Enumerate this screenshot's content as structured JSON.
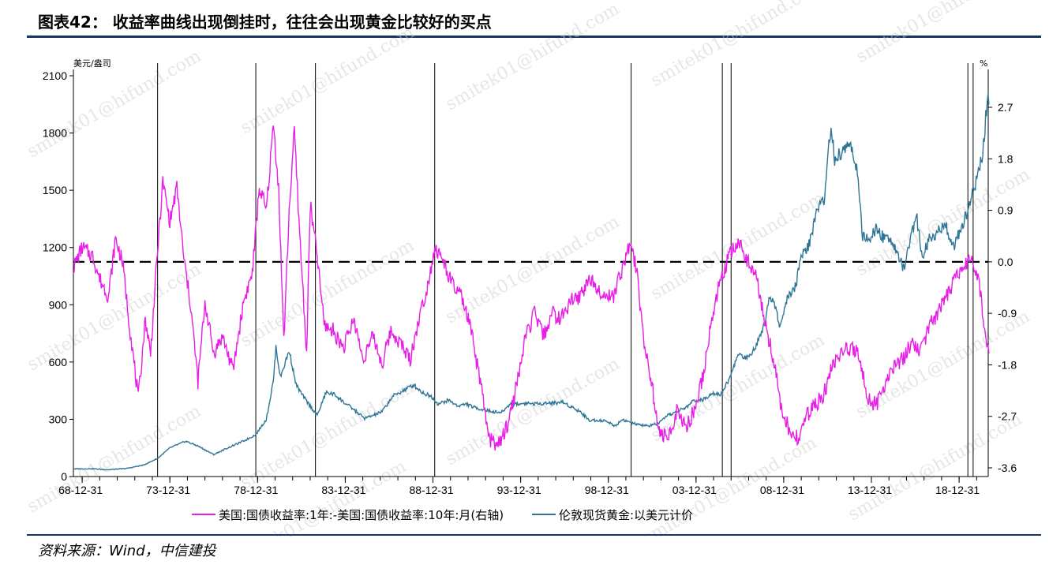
{
  "title": "图表42：   收益率曲线出现倒挂时，往往会出现黄金比较好的买点",
  "source": "资料来源：Wind，中信建投",
  "watermark": "smitek01@hifund.com",
  "colors": {
    "spread": "#e81ee8",
    "gold": "#2e7596",
    "rule": "#17375e",
    "zero_line": "#000000"
  },
  "chart_data": {
    "type": "line",
    "x": {
      "tick_labels": [
        "68-12-31",
        "73-12-31",
        "78-12-31",
        "83-12-31",
        "88-12-31",
        "93-12-31",
        "98-12-31",
        "03-12-31",
        "08-12-31",
        "13-12-31",
        "18-12-31"
      ],
      "range": [
        "1968-06",
        "2020-08"
      ]
    },
    "y_left": {
      "unit": "美元/盎司",
      "ticks": [
        0,
        300,
        600,
        900,
        1200,
        1500,
        1800,
        2100
      ],
      "range": [
        0,
        2100
      ]
    },
    "y_right": {
      "unit": "%",
      "ticks": [
        -3.6,
        -2.7,
        -1.8,
        -0.9,
        0.0,
        0.9,
        1.8,
        2.7
      ],
      "range": [
        -3.6,
        2.7
      ]
    },
    "zero_line_right": 0.0,
    "inversion_markers": [
      1973.3,
      1978.9,
      1982.3,
      1989.1,
      2000.3,
      2005.5,
      2006.0,
      2019.5,
      2019.8
    ],
    "series": [
      {
        "name": "美国:国债收益率:1年:-美国:国债收益率:10年:月(右轴)",
        "axis": "right",
        "points": [
          [
            1968.5,
            -0.1
          ],
          [
            1969.0,
            0.25
          ],
          [
            1969.6,
            0.1
          ],
          [
            1970.0,
            -0.3
          ],
          [
            1970.5,
            -0.6
          ],
          [
            1970.9,
            0.4
          ],
          [
            1971.3,
            0.0
          ],
          [
            1971.7,
            -1.1
          ],
          [
            1972.2,
            -2.4
          ],
          [
            1972.6,
            -1.0
          ],
          [
            1972.9,
            -1.6
          ],
          [
            1973.3,
            0.2
          ],
          [
            1973.6,
            1.4
          ],
          [
            1974.0,
            0.7
          ],
          [
            1974.4,
            1.3
          ],
          [
            1974.8,
            0.05
          ],
          [
            1975.2,
            -0.8
          ],
          [
            1975.6,
            -2.1
          ],
          [
            1976.0,
            -0.7
          ],
          [
            1976.5,
            -1.6
          ],
          [
            1977.0,
            -1.3
          ],
          [
            1977.6,
            -1.9
          ],
          [
            1978.2,
            -0.7
          ],
          [
            1978.7,
            -0.2
          ],
          [
            1979.1,
            1.3
          ],
          [
            1979.5,
            0.9
          ],
          [
            1979.9,
            2.4
          ],
          [
            1980.2,
            1.3
          ],
          [
            1980.5,
            -1.4
          ],
          [
            1980.8,
            0.9
          ],
          [
            1981.1,
            2.3
          ],
          [
            1981.4,
            0.5
          ],
          [
            1981.8,
            -1.6
          ],
          [
            1982.0,
            1.0
          ],
          [
            1982.4,
            0.1
          ],
          [
            1982.8,
            -1.1
          ],
          [
            1983.3,
            -1.2
          ],
          [
            1983.9,
            -1.5
          ],
          [
            1984.5,
            -1.0
          ],
          [
            1985.0,
            -1.7
          ],
          [
            1985.6,
            -1.3
          ],
          [
            1986.1,
            -1.8
          ],
          [
            1986.6,
            -1.2
          ],
          [
            1987.1,
            -1.4
          ],
          [
            1987.7,
            -1.7
          ],
          [
            1988.2,
            -1.0
          ],
          [
            1988.7,
            -0.4
          ],
          [
            1989.1,
            0.25
          ],
          [
            1989.6,
            0.0
          ],
          [
            1990.1,
            -0.4
          ],
          [
            1990.6,
            -0.6
          ],
          [
            1991.1,
            -1.1
          ],
          [
            1991.7,
            -2.1
          ],
          [
            1992.2,
            -3.1
          ],
          [
            1992.8,
            -3.2
          ],
          [
            1993.3,
            -2.8
          ],
          [
            1993.8,
            -2.1
          ],
          [
            1994.3,
            -1.3
          ],
          [
            1994.8,
            -0.9
          ],
          [
            1995.3,
            -1.3
          ],
          [
            1995.8,
            -0.9
          ],
          [
            1996.3,
            -1.0
          ],
          [
            1996.8,
            -0.7
          ],
          [
            1997.4,
            -0.6
          ],
          [
            1997.9,
            -0.3
          ],
          [
            1998.3,
            -0.4
          ],
          [
            1998.8,
            -0.6
          ],
          [
            1999.3,
            -0.6
          ],
          [
            1999.8,
            -0.1
          ],
          [
            2000.2,
            0.3
          ],
          [
            2000.6,
            -0.1
          ],
          [
            2001.0,
            -1.3
          ],
          [
            2001.5,
            -2.2
          ],
          [
            2001.9,
            -3.0
          ],
          [
            2002.4,
            -3.1
          ],
          [
            2002.9,
            -2.6
          ],
          [
            2003.4,
            -2.9
          ],
          [
            2003.9,
            -2.6
          ],
          [
            2004.4,
            -2.0
          ],
          [
            2004.9,
            -1.0
          ],
          [
            2005.4,
            -0.3
          ],
          [
            2005.9,
            0.1
          ],
          [
            2006.4,
            0.35
          ],
          [
            2006.9,
            0.05
          ],
          [
            2007.4,
            -0.2
          ],
          [
            2007.9,
            -1.0
          ],
          [
            2008.4,
            -1.7
          ],
          [
            2008.9,
            -2.6
          ],
          [
            2009.4,
            -3.0
          ],
          [
            2009.9,
            -3.1
          ],
          [
            2010.3,
            -2.7
          ],
          [
            2010.8,
            -2.5
          ],
          [
            2011.3,
            -2.3
          ],
          [
            2011.8,
            -1.8
          ],
          [
            2012.3,
            -1.6
          ],
          [
            2012.8,
            -1.5
          ],
          [
            2013.3,
            -1.6
          ],
          [
            2013.8,
            -2.4
          ],
          [
            2014.3,
            -2.5
          ],
          [
            2014.8,
            -2.1
          ],
          [
            2015.3,
            -1.8
          ],
          [
            2015.8,
            -1.7
          ],
          [
            2016.3,
            -1.4
          ],
          [
            2016.8,
            -1.6
          ],
          [
            2017.3,
            -1.1
          ],
          [
            2017.8,
            -0.9
          ],
          [
            2018.3,
            -0.6
          ],
          [
            2018.8,
            -0.3
          ],
          [
            2019.3,
            -0.1
          ],
          [
            2019.6,
            0.1
          ],
          [
            2019.9,
            -0.05
          ],
          [
            2020.2,
            -0.5
          ],
          [
            2020.5,
            -1.4
          ],
          [
            2020.7,
            -1.6
          ]
        ]
      },
      {
        "name": "伦敦现货黄金:以美元计价",
        "axis": "left",
        "points": [
          [
            1968.5,
            40
          ],
          [
            1969.5,
            41
          ],
          [
            1970.5,
            36
          ],
          [
            1971.5,
            42
          ],
          [
            1972.5,
            60
          ],
          [
            1973.3,
            95
          ],
          [
            1974.0,
            150
          ],
          [
            1974.9,
            185
          ],
          [
            1975.6,
            160
          ],
          [
            1976.5,
            115
          ],
          [
            1977.3,
            150
          ],
          [
            1978.3,
            190
          ],
          [
            1978.9,
            220
          ],
          [
            1979.5,
            300
          ],
          [
            1979.9,
            500
          ],
          [
            1980.05,
            680
          ],
          [
            1980.3,
            520
          ],
          [
            1980.8,
            660
          ],
          [
            1981.2,
            480
          ],
          [
            1981.6,
            420
          ],
          [
            1982.0,
            370
          ],
          [
            1982.4,
            320
          ],
          [
            1982.9,
            440
          ],
          [
            1983.4,
            430
          ],
          [
            1983.9,
            390
          ],
          [
            1984.5,
            350
          ],
          [
            1985.1,
            305
          ],
          [
            1985.6,
            320
          ],
          [
            1986.1,
            340
          ],
          [
            1986.7,
            420
          ],
          [
            1987.3,
            450
          ],
          [
            1987.9,
            480
          ],
          [
            1988.4,
            440
          ],
          [
            1988.9,
            420
          ],
          [
            1989.3,
            380
          ],
          [
            1989.9,
            400
          ],
          [
            1990.4,
            370
          ],
          [
            1990.9,
            380
          ],
          [
            1991.4,
            360
          ],
          [
            1991.9,
            350
          ],
          [
            1992.4,
            340
          ],
          [
            1992.9,
            335
          ],
          [
            1993.4,
            380
          ],
          [
            1993.9,
            380
          ],
          [
            1994.4,
            385
          ],
          [
            1994.9,
            380
          ],
          [
            1995.4,
            385
          ],
          [
            1995.9,
            385
          ],
          [
            1996.4,
            390
          ],
          [
            1996.9,
            365
          ],
          [
            1997.4,
            340
          ],
          [
            1997.9,
            295
          ],
          [
            1998.4,
            295
          ],
          [
            1998.9,
            290
          ],
          [
            1999.4,
            265
          ],
          [
            1999.8,
            300
          ],
          [
            2000.3,
            280
          ],
          [
            2000.8,
            270
          ],
          [
            2001.3,
            265
          ],
          [
            2001.9,
            280
          ],
          [
            2002.4,
            320
          ],
          [
            2002.9,
            340
          ],
          [
            2003.4,
            360
          ],
          [
            2003.9,
            400
          ],
          [
            2004.4,
            400
          ],
          [
            2004.9,
            440
          ],
          [
            2005.4,
            430
          ],
          [
            2005.9,
            510
          ],
          [
            2006.4,
            640
          ],
          [
            2006.9,
            620
          ],
          [
            2007.4,
            680
          ],
          [
            2007.9,
            800
          ],
          [
            2008.2,
            950
          ],
          [
            2008.5,
            900
          ],
          [
            2008.8,
            780
          ],
          [
            2009.2,
            930
          ],
          [
            2009.7,
            1000
          ],
          [
            2009.95,
            1150
          ],
          [
            2010.4,
            1200
          ],
          [
            2010.9,
            1400
          ],
          [
            2011.3,
            1450
          ],
          [
            2011.7,
            1850
          ],
          [
            2011.9,
            1650
          ],
          [
            2012.3,
            1700
          ],
          [
            2012.7,
            1750
          ],
          [
            2012.9,
            1700
          ],
          [
            2013.2,
            1600
          ],
          [
            2013.5,
            1250
          ],
          [
            2013.9,
            1240
          ],
          [
            2014.3,
            1300
          ],
          [
            2014.7,
            1250
          ],
          [
            2015.1,
            1250
          ],
          [
            2015.5,
            1170
          ],
          [
            2015.9,
            1070
          ],
          [
            2016.2,
            1250
          ],
          [
            2016.6,
            1350
          ],
          [
            2016.9,
            1150
          ],
          [
            2017.3,
            1250
          ],
          [
            2017.8,
            1280
          ],
          [
            2018.2,
            1330
          ],
          [
            2018.7,
            1200
          ],
          [
            2019.1,
            1300
          ],
          [
            2019.5,
            1400
          ],
          [
            2019.8,
            1500
          ],
          [
            2020.1,
            1580
          ],
          [
            2020.35,
            1700
          ],
          [
            2020.6,
            1980
          ],
          [
            2020.7,
            1950
          ]
        ]
      }
    ]
  },
  "legend": [
    {
      "label": "美国:国债收益率:1年:-美国:国债收益率:10年:月(右轴)",
      "color": "#e81ee8"
    },
    {
      "label": "伦敦现货黄金:以美元计价",
      "color": "#2e7596"
    }
  ]
}
